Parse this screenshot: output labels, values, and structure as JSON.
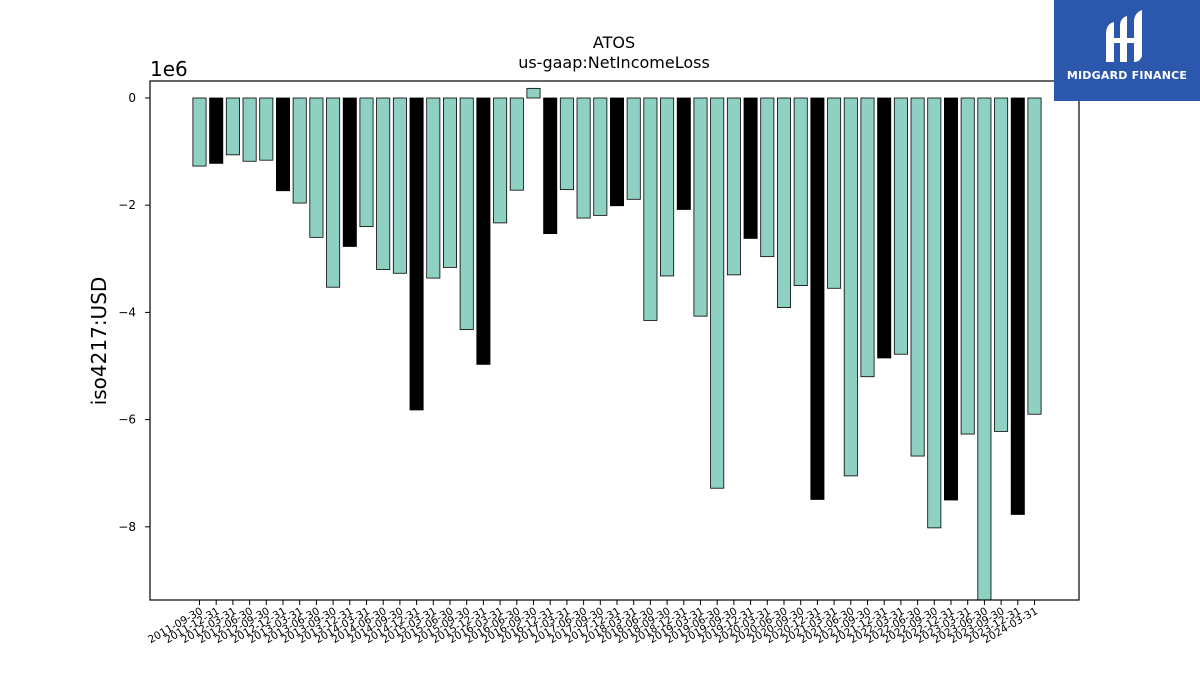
{
  "logo": {
    "brand": "MIDGARD FINANCE",
    "icon": "midgard-logo-icon",
    "color": "#2b57ad"
  },
  "chart_data": {
    "type": "bar",
    "title": "ATOS",
    "subtitle": "us-gaap:NetIncomeLoss",
    "ylabel": "iso4217:USD",
    "xlabel": "",
    "y_offset_label": "1e6",
    "ylim": [
      -9.4,
      0.3
    ],
    "y_ticks": [
      0,
      -2,
      -4,
      -6,
      -8
    ],
    "y_tick_labels": [
      "0",
      "−2",
      "−4",
      "−6",
      "−8"
    ],
    "grid": false,
    "colors": {
      "quarter": "#8ed0c2",
      "annual": "#000000",
      "edge": "#000000"
    },
    "categories": [
      "2011-09-30",
      "2011-12-31",
      "2012-03-31",
      "2012-06-30",
      "2012-09-30",
      "2012-12-31",
      "2013-03-31",
      "2013-06-30",
      "2013-09-30",
      "2013-12-31",
      "2014-03-31",
      "2014-06-30",
      "2014-09-30",
      "2014-12-31",
      "2015-03-31",
      "2015-06-30",
      "2015-09-30",
      "2015-12-31",
      "2016-03-31",
      "2016-06-30",
      "2016-09-30",
      "2016-12-31",
      "2017-03-31",
      "2017-06-30",
      "2017-09-30",
      "2017-12-31",
      "2018-03-31",
      "2018-06-30",
      "2018-09-30",
      "2018-12-31",
      "2019-03-31",
      "2019-06-30",
      "2019-09-30",
      "2019-12-31",
      "2020-03-31",
      "2020-06-30",
      "2020-09-30",
      "2020-12-31",
      "2021-03-31",
      "2021-06-30",
      "2021-09-30",
      "2021-12-31",
      "2022-03-31",
      "2022-06-30",
      "2022-09-30",
      "2022-12-31",
      "2023-03-31",
      "2023-06-30",
      "2023-09-30",
      "2023-12-31",
      "2024-03-31"
    ],
    "values": [
      -1.27,
      -1.22,
      -1.06,
      -1.18,
      -1.16,
      -1.73,
      -1.96,
      -2.6,
      -3.53,
      -2.77,
      -2.4,
      -3.2,
      -3.27,
      -5.82,
      -3.36,
      -3.16,
      -4.32,
      -4.97,
      -2.33,
      -1.72,
      0.18,
      -2.53,
      -1.71,
      -2.24,
      -2.19,
      -2.01,
      -1.89,
      -4.15,
      -3.32,
      -2.08,
      -4.07,
      -7.28,
      -3.3,
      -2.62,
      -2.96,
      -3.91,
      -3.5,
      -7.49,
      -3.55,
      -7.05,
      -5.2,
      -4.85,
      -4.78,
      -6.68,
      -8.02,
      -7.5,
      -6.27,
      -9.4,
      -6.22,
      -7.77,
      -5.9
    ],
    "annual_flags": [
      false,
      true,
      false,
      false,
      false,
      true,
      false,
      false,
      false,
      true,
      false,
      false,
      false,
      true,
      false,
      false,
      false,
      true,
      false,
      false,
      false,
      true,
      false,
      false,
      false,
      true,
      false,
      false,
      false,
      true,
      false,
      false,
      false,
      true,
      false,
      false,
      false,
      true,
      false,
      false,
      false,
      true,
      false,
      false,
      false,
      true,
      false,
      false,
      false,
      true,
      false
    ]
  }
}
